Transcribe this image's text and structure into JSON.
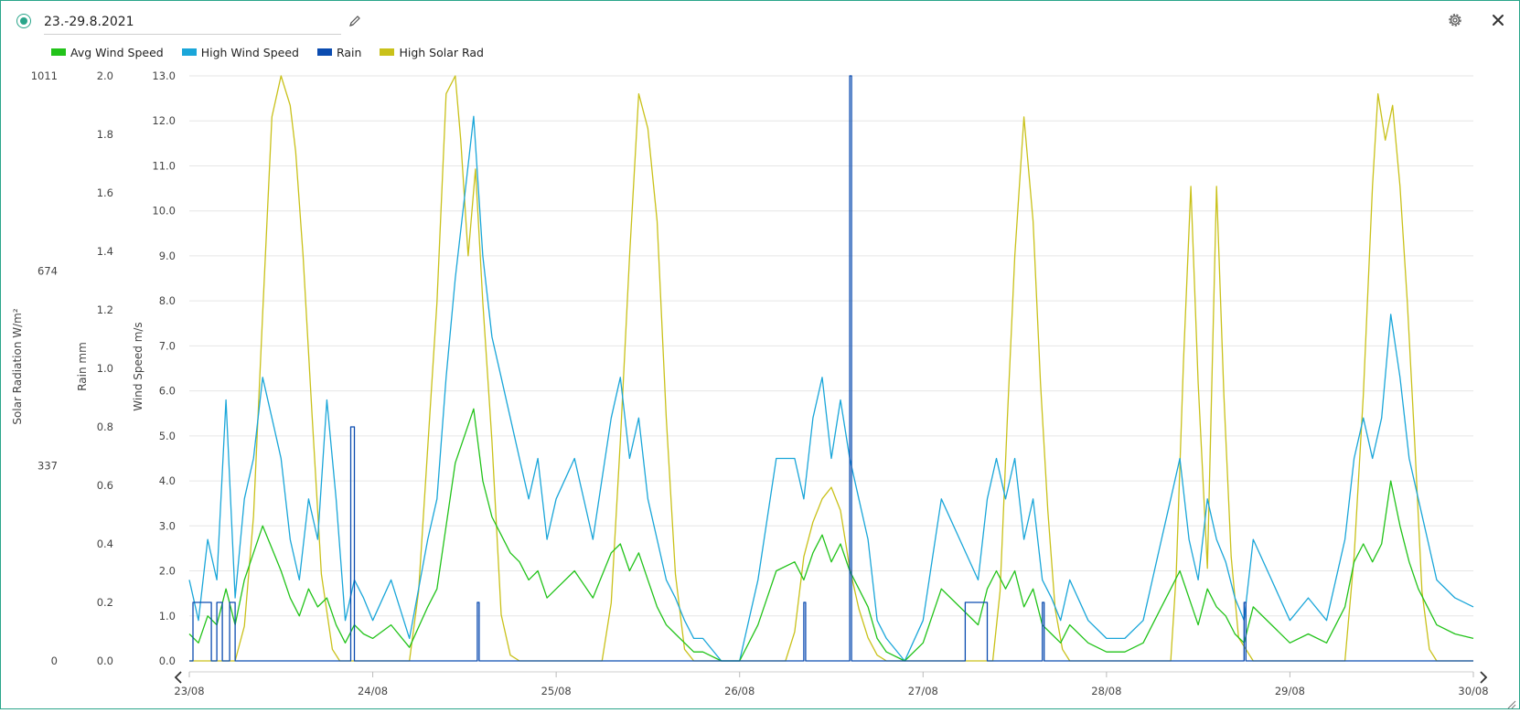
{
  "header": {
    "date_range": "23.-29.8.2021"
  },
  "icons": {
    "status": "status-dot-icon",
    "edit": "pencil-icon",
    "settings": "gear-icon",
    "close": "close-icon",
    "prev": "chevron-left-icon",
    "next": "chevron-right-icon",
    "resize": "resize-icon"
  },
  "colors": {
    "accent": "#2aa58a",
    "avg_wind": "#22c31a",
    "high_wind": "#1aa6d9",
    "rain": "#0b4cb0",
    "solar": "#c9c11a",
    "grid": "#e6e6e6"
  },
  "chart_data": {
    "type": "line",
    "title": "",
    "grid": true,
    "legend_position": "top-left",
    "legend": [
      "Avg Wind Speed",
      "High Wind Speed",
      "Rain",
      "High Solar Rad"
    ],
    "x_ticks": [
      "23/08",
      "24/08",
      "25/08",
      "26/08",
      "27/08",
      "28/08",
      "29/08",
      "30/08"
    ],
    "x_range": [
      0,
      7
    ],
    "axes": [
      {
        "id": "solar",
        "label": "Solar Radiation W/m²",
        "range": [
          0,
          1011
        ],
        "ticks": [
          "0",
          "337",
          "674",
          "1011"
        ],
        "tick_values": [
          0,
          337,
          674,
          1011
        ]
      },
      {
        "id": "rain",
        "label": "Rain mm",
        "range": [
          0,
          2.0
        ],
        "ticks": [
          "0.0",
          "0.2",
          "0.4",
          "0.6",
          "0.8",
          "1.0",
          "1.2",
          "1.4",
          "1.6",
          "1.8",
          "2.0"
        ],
        "tick_values": [
          0,
          0.2,
          0.4,
          0.6,
          0.8,
          1.0,
          1.2,
          1.4,
          1.6,
          1.8,
          2.0
        ]
      },
      {
        "id": "wind",
        "label": "Wind Speed m/s",
        "range": [
          0,
          13
        ],
        "ticks": [
          "0.0",
          "1.0",
          "2.0",
          "3.0",
          "4.0",
          "5.0",
          "6.0",
          "7.0",
          "8.0",
          "9.0",
          "10.0",
          "11.0",
          "12.0",
          "13.0"
        ],
        "tick_values": [
          0,
          1,
          2,
          3,
          4,
          5,
          6,
          7,
          8,
          9,
          10,
          11,
          12,
          13
        ]
      }
    ],
    "series": [
      {
        "name": "High Solar Rad",
        "axis": "solar",
        "x": [
          0.0,
          0.25,
          0.3,
          0.35,
          0.4,
          0.45,
          0.5,
          0.55,
          0.58,
          0.62,
          0.67,
          0.72,
          0.78,
          0.82,
          0.9,
          1.0,
          1.2,
          1.25,
          1.35,
          1.4,
          1.45,
          1.48,
          1.52,
          1.56,
          1.6,
          1.65,
          1.7,
          1.75,
          1.8,
          1.85,
          2.0,
          2.25,
          2.3,
          2.35,
          2.4,
          2.45,
          2.5,
          2.55,
          2.6,
          2.65,
          2.7,
          2.75,
          2.8,
          2.85,
          3.0,
          3.25,
          3.3,
          3.35,
          3.4,
          3.45,
          3.5,
          3.55,
          3.6,
          3.65,
          3.7,
          3.75,
          3.8,
          4.0,
          4.38,
          4.42,
          4.46,
          4.5,
          4.55,
          4.6,
          4.64,
          4.68,
          4.72,
          4.76,
          4.8,
          5.0,
          5.35,
          5.38,
          5.42,
          5.46,
          5.5,
          5.55,
          5.6,
          5.64,
          5.68,
          5.72,
          5.8,
          6.0,
          6.3,
          6.35,
          6.4,
          6.45,
          6.48,
          6.52,
          6.56,
          6.6,
          6.64,
          6.68,
          6.72,
          6.76,
          6.8,
          7.0
        ],
        "y": [
          0,
          0,
          60,
          250,
          600,
          940,
          1011,
          960,
          880,
          700,
          420,
          150,
          20,
          0,
          0,
          0,
          0,
          120,
          620,
          980,
          1011,
          900,
          700,
          850,
          620,
          380,
          80,
          10,
          0,
          0,
          0,
          0,
          100,
          380,
          700,
          980,
          920,
          760,
          420,
          150,
          20,
          0,
          0,
          0,
          0,
          0,
          50,
          180,
          240,
          280,
          300,
          260,
          160,
          90,
          40,
          10,
          0,
          0,
          0,
          120,
          420,
          700,
          940,
          760,
          480,
          260,
          90,
          20,
          0,
          0,
          0,
          150,
          520,
          820,
          480,
          160,
          820,
          460,
          180,
          40,
          0,
          0,
          0,
          180,
          460,
          820,
          980,
          900,
          960,
          820,
          620,
          380,
          120,
          20,
          0,
          0
        ]
      },
      {
        "name": "High Wind Speed",
        "axis": "wind",
        "x": [
          0.0,
          0.05,
          0.1,
          0.15,
          0.2,
          0.25,
          0.3,
          0.35,
          0.4,
          0.45,
          0.5,
          0.55,
          0.6,
          0.65,
          0.7,
          0.75,
          0.8,
          0.85,
          0.9,
          0.95,
          1.0,
          1.1,
          1.2,
          1.3,
          1.35,
          1.4,
          1.45,
          1.5,
          1.55,
          1.6,
          1.65,
          1.7,
          1.75,
          1.8,
          1.85,
          1.9,
          1.95,
          2.0,
          2.1,
          2.2,
          2.3,
          2.35,
          2.4,
          2.45,
          2.5,
          2.55,
          2.6,
          2.65,
          2.7,
          2.75,
          2.8,
          2.9,
          3.0,
          3.1,
          3.2,
          3.3,
          3.35,
          3.4,
          3.45,
          3.5,
          3.55,
          3.6,
          3.65,
          3.7,
          3.75,
          3.8,
          3.9,
          4.0,
          4.1,
          4.2,
          4.3,
          4.35,
          4.4,
          4.45,
          4.5,
          4.55,
          4.6,
          4.65,
          4.7,
          4.75,
          4.8,
          4.9,
          5.0,
          5.1,
          5.2,
          5.3,
          5.35,
          5.4,
          5.45,
          5.5,
          5.55,
          5.6,
          5.65,
          5.7,
          5.75,
          5.8,
          5.9,
          6.0,
          6.1,
          6.2,
          6.3,
          6.35,
          6.4,
          6.45,
          6.5,
          6.55,
          6.6,
          6.65,
          6.7,
          6.75,
          6.8,
          6.9,
          7.0
        ],
        "y": [
          1.8,
          0.9,
          2.7,
          1.8,
          5.8,
          1.4,
          3.6,
          4.5,
          6.3,
          5.4,
          4.5,
          2.7,
          1.8,
          3.6,
          2.7,
          5.8,
          3.6,
          0.9,
          1.8,
          1.4,
          0.9,
          1.8,
          0.5,
          2.7,
          3.6,
          6.3,
          8.5,
          10.3,
          12.1,
          9.0,
          7.2,
          6.3,
          5.4,
          4.5,
          3.6,
          4.5,
          2.7,
          3.6,
          4.5,
          2.7,
          5.4,
          6.3,
          4.5,
          5.4,
          3.6,
          2.7,
          1.8,
          1.4,
          0.9,
          0.5,
          0.5,
          0.0,
          0.0,
          1.8,
          4.5,
          4.5,
          3.6,
          5.4,
          6.3,
          4.5,
          5.8,
          4.5,
          3.6,
          2.7,
          0.9,
          0.5,
          0.0,
          0.9,
          3.6,
          2.7,
          1.8,
          3.6,
          4.5,
          3.6,
          4.5,
          2.7,
          3.6,
          1.8,
          1.4,
          0.9,
          1.8,
          0.9,
          0.5,
          0.5,
          0.9,
          2.7,
          3.6,
          4.5,
          2.7,
          1.8,
          3.6,
          2.7,
          2.2,
          1.4,
          0.9,
          2.7,
          1.8,
          0.9,
          1.4,
          0.9,
          2.7,
          4.5,
          5.4,
          4.5,
          5.4,
          7.7,
          6.3,
          4.5,
          3.6,
          2.7,
          1.8,
          1.4,
          1.2
        ]
      },
      {
        "name": "Avg Wind Speed",
        "axis": "wind",
        "x": [
          0.0,
          0.05,
          0.1,
          0.15,
          0.2,
          0.25,
          0.3,
          0.35,
          0.4,
          0.45,
          0.5,
          0.55,
          0.6,
          0.65,
          0.7,
          0.75,
          0.8,
          0.85,
          0.9,
          0.95,
          1.0,
          1.1,
          1.2,
          1.3,
          1.35,
          1.4,
          1.45,
          1.5,
          1.55,
          1.6,
          1.65,
          1.7,
          1.75,
          1.8,
          1.85,
          1.9,
          1.95,
          2.0,
          2.1,
          2.2,
          2.3,
          2.35,
          2.4,
          2.45,
          2.5,
          2.55,
          2.6,
          2.65,
          2.7,
          2.75,
          2.8,
          2.9,
          3.0,
          3.1,
          3.2,
          3.3,
          3.35,
          3.4,
          3.45,
          3.5,
          3.55,
          3.6,
          3.65,
          3.7,
          3.75,
          3.8,
          3.9,
          4.0,
          4.1,
          4.2,
          4.3,
          4.35,
          4.4,
          4.45,
          4.5,
          4.55,
          4.6,
          4.65,
          4.7,
          4.75,
          4.8,
          4.9,
          5.0,
          5.1,
          5.2,
          5.3,
          5.35,
          5.4,
          5.45,
          5.5,
          5.55,
          5.6,
          5.65,
          5.7,
          5.75,
          5.8,
          5.9,
          6.0,
          6.1,
          6.2,
          6.3,
          6.35,
          6.4,
          6.45,
          6.5,
          6.55,
          6.6,
          6.65,
          6.7,
          6.75,
          6.8,
          6.9,
          7.0
        ],
        "y": [
          0.6,
          0.4,
          1.0,
          0.8,
          1.6,
          0.8,
          1.8,
          2.4,
          3.0,
          2.5,
          2.0,
          1.4,
          1.0,
          1.6,
          1.2,
          1.4,
          0.8,
          0.4,
          0.8,
          0.6,
          0.5,
          0.8,
          0.3,
          1.2,
          1.6,
          3.0,
          4.4,
          5.0,
          5.6,
          4.0,
          3.2,
          2.8,
          2.4,
          2.2,
          1.8,
          2.0,
          1.4,
          1.6,
          2.0,
          1.4,
          2.4,
          2.6,
          2.0,
          2.4,
          1.8,
          1.2,
          0.8,
          0.6,
          0.4,
          0.2,
          0.2,
          0.0,
          0.0,
          0.8,
          2.0,
          2.2,
          1.8,
          2.4,
          2.8,
          2.2,
          2.6,
          2.0,
          1.6,
          1.2,
          0.5,
          0.2,
          0.0,
          0.4,
          1.6,
          1.2,
          0.8,
          1.6,
          2.0,
          1.6,
          2.0,
          1.2,
          1.6,
          0.8,
          0.6,
          0.4,
          0.8,
          0.4,
          0.2,
          0.2,
          0.4,
          1.2,
          1.6,
          2.0,
          1.4,
          0.8,
          1.6,
          1.2,
          1.0,
          0.6,
          0.4,
          1.2,
          0.8,
          0.4,
          0.6,
          0.4,
          1.2,
          2.2,
          2.6,
          2.2,
          2.6,
          4.0,
          3.0,
          2.2,
          1.6,
          1.2,
          0.8,
          0.6,
          0.5
        ]
      },
      {
        "name": "Rain",
        "axis": "rain",
        "x": [
          0.0,
          0.02,
          0.02,
          0.12,
          0.12,
          0.15,
          0.15,
          0.18,
          0.18,
          0.22,
          0.22,
          0.25,
          0.25,
          0.33,
          0.33,
          0.88,
          0.88,
          0.9,
          0.9,
          1.57,
          1.57,
          1.58,
          1.58,
          3.35,
          3.35,
          3.36,
          3.36,
          3.6,
          3.6,
          3.61,
          3.61,
          3.62,
          3.62,
          4.23,
          4.23,
          4.35,
          4.35,
          4.65,
          4.65,
          4.66,
          4.66,
          5.75,
          5.75,
          5.76,
          5.76,
          7.0
        ],
        "y": [
          0,
          0,
          0.2,
          0.2,
          0,
          0,
          0.2,
          0.2,
          0,
          0,
          0.2,
          0.2,
          0,
          0,
          0,
          0,
          0.8,
          0.8,
          0,
          0,
          0.2,
          0.2,
          0,
          0,
          0.2,
          0.2,
          0,
          0,
          2.0,
          2.0,
          0,
          0,
          0,
          0,
          0.2,
          0.2,
          0,
          0,
          0.2,
          0.2,
          0,
          0,
          0.2,
          0.2,
          0,
          0
        ]
      }
    ]
  }
}
